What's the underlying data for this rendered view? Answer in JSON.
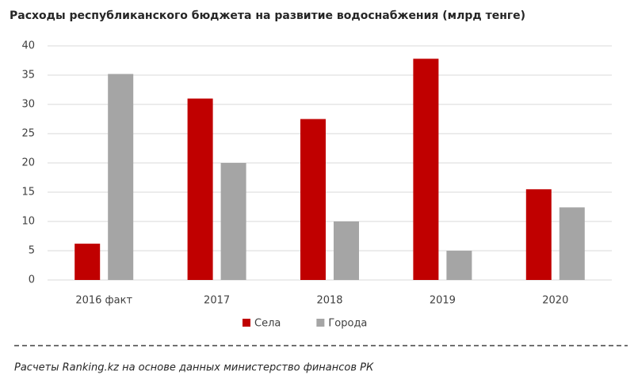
{
  "chart_data": {
    "type": "bar",
    "title": "Расходы республиканского бюджета на развитие водоснабжения (млрд тенге)",
    "categories": [
      "2016 факт",
      "2017",
      "2018",
      "2019",
      "2020"
    ],
    "series": [
      {
        "name": "Села",
        "color": "#c00000",
        "values": [
          6.2,
          31,
          27.5,
          37.8,
          15.5
        ]
      },
      {
        "name": "Города",
        "color": "#a5a5a5",
        "values": [
          35.2,
          20,
          10,
          5,
          12.4
        ]
      }
    ],
    "ylim": [
      0,
      40
    ],
    "yticks": [
      0,
      5,
      10,
      15,
      20,
      25,
      30,
      35,
      40
    ],
    "grid": true,
    "legend": "bottom",
    "source": "Расчеты Ranking.kz на основе данных министерство финансов РК"
  }
}
